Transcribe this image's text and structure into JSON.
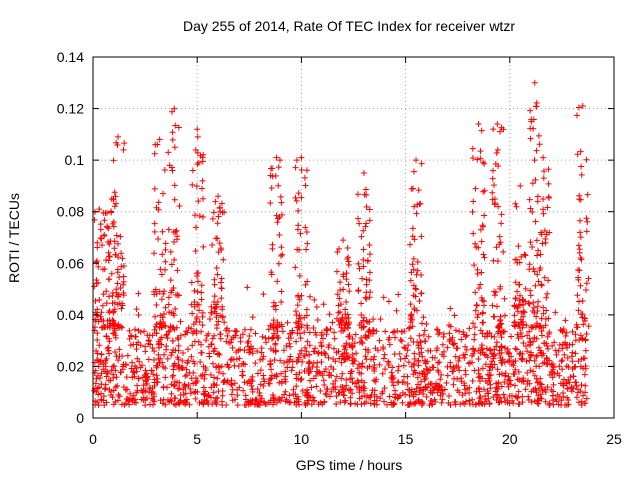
{
  "chart_data": {
    "type": "scatter",
    "title": "Day 255 of 2014, Rate Of TEC Index for receiver wtzr",
    "xlabel": "GPS time / hours",
    "ylabel": "ROTI / TECUs",
    "xlim": [
      0,
      25
    ],
    "ylim": [
      0,
      0.14
    ],
    "xticks": [
      0,
      5,
      10,
      15,
      20,
      25
    ],
    "xtick_labels": [
      "0",
      "5",
      "10",
      "15",
      "20",
      "25"
    ],
    "yticks": [
      0,
      0.02,
      0.04,
      0.06,
      0.08,
      0.1,
      0.12,
      0.14
    ],
    "ytick_labels": [
      "0",
      "0.02",
      "0.04",
      "0.06",
      "0.08",
      "0.1",
      "0.12",
      "0.14"
    ],
    "grid": true,
    "marker": "+",
    "color": "#ff0000",
    "series": [
      {
        "name": "ROTI",
        "data_range_x": [
          0,
          23.7
        ],
        "baseline_band": [
          0.005,
          0.035
        ],
        "peaks": [
          {
            "x": 0.3,
            "y": 0.081
          },
          {
            "x": 0.9,
            "y": 0.085
          },
          {
            "x": 1.2,
            "y": 0.109
          },
          {
            "x": 3.2,
            "y": 0.108
          },
          {
            "x": 3.9,
            "y": 0.12
          },
          {
            "x": 5.0,
            "y": 0.112
          },
          {
            "x": 6.0,
            "y": 0.086
          },
          {
            "x": 8.8,
            "y": 0.101
          },
          {
            "x": 10.0,
            "y": 0.101
          },
          {
            "x": 12.0,
            "y": 0.069
          },
          {
            "x": 13.0,
            "y": 0.095
          },
          {
            "x": 15.5,
            "y": 0.1
          },
          {
            "x": 18.5,
            "y": 0.114
          },
          {
            "x": 19.4,
            "y": 0.114
          },
          {
            "x": 20.5,
            "y": 0.09
          },
          {
            "x": 21.2,
            "y": 0.13
          },
          {
            "x": 21.6,
            "y": 0.101
          },
          {
            "x": 23.5,
            "y": 0.121
          }
        ]
      }
    ]
  }
}
